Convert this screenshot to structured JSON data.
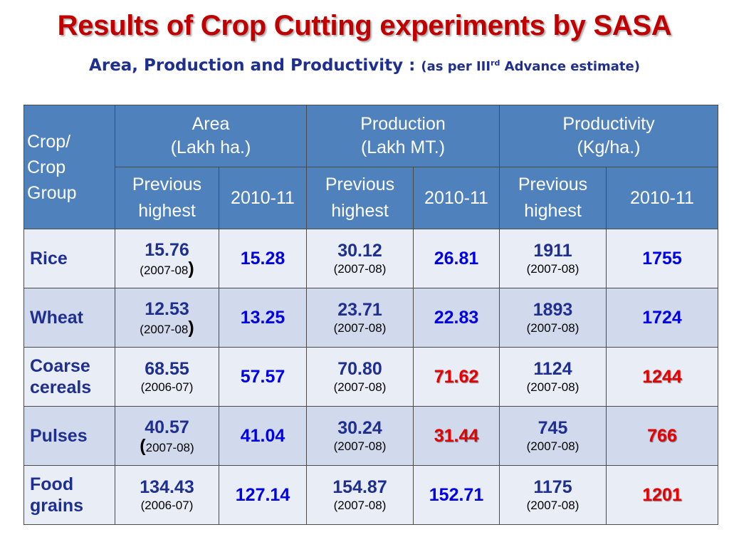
{
  "title": "Results of Crop Cutting experiments by SASA",
  "subtitle": {
    "main": "Area, Production and Productivity :",
    "note_prefix": "(as per III",
    "note_sup": "rd",
    "note_suffix": " Advance estimate)"
  },
  "table": {
    "header": {
      "crop_col": [
        "Crop/",
        "Crop",
        "Group"
      ],
      "groups": [
        {
          "name": "Area",
          "unit": "(Lakh ha.)"
        },
        {
          "name": "Production",
          "unit": "(Lakh MT.)"
        },
        {
          "name": "Productivity",
          "unit": "(Kg/ha.)"
        }
      ],
      "sub": {
        "prev_line1": "Previous",
        "prev_line2": "highest",
        "current": "2010-11"
      }
    },
    "rows": [
      {
        "crop": [
          "Rice"
        ],
        "area": {
          "prev": "15.76",
          "year": "2007-08",
          "year_style": "bigclose",
          "cur": "15.28",
          "cur_red": false
        },
        "production": {
          "prev": "30.12",
          "year": "(2007-08)",
          "cur": "26.81",
          "cur_red": false
        },
        "productivity": {
          "prev": "1911",
          "year": "(2007-08)",
          "cur": "1755",
          "cur_red": false
        }
      },
      {
        "crop": [
          "Wheat"
        ],
        "area": {
          "prev": "12.53",
          "year": "2007-08",
          "year_style": "bigclose",
          "cur": "13.25",
          "cur_red": false
        },
        "production": {
          "prev": "23.71",
          "year": "(2007-08)",
          "cur": "22.83",
          "cur_red": false
        },
        "productivity": {
          "prev": "1893",
          "year": "(2007-08)",
          "cur": "1724",
          "cur_red": false
        }
      },
      {
        "crop": [
          "Coarse",
          "cereals"
        ],
        "area": {
          "prev": "68.55",
          "year": "(2006-07)",
          "year_style": "plain",
          "cur": "57.57",
          "cur_red": false
        },
        "production": {
          "prev": "70.80",
          "year": "(2007-08)",
          "cur": "71.62",
          "cur_red": true
        },
        "productivity": {
          "prev": "1124",
          "year": "(2007-08)",
          "cur": "1244",
          "cur_red": true
        }
      },
      {
        "crop": [
          "Pulses"
        ],
        "area": {
          "prev": "40.57",
          "year": "2007-08)",
          "year_style": "bigopen",
          "cur": "41.04",
          "cur_red": false
        },
        "production": {
          "prev": "30.24",
          "year": "(2007-08)",
          "cur": "31.44",
          "cur_red": true
        },
        "productivity": {
          "prev": "745",
          "year": "(2007-08)",
          "cur": "766",
          "cur_red": true
        }
      },
      {
        "crop": [
          "Food",
          "grains"
        ],
        "area": {
          "prev": "134.43",
          "year": "(2006-07)",
          "year_style": "plain",
          "cur": "127.14",
          "cur_red": false
        },
        "production": {
          "prev": "154.87",
          "year": "(2007-08)",
          "cur": "152.71",
          "cur_red": false
        },
        "productivity": {
          "prev": "1175",
          "year": "(2007-08)",
          "cur": "1201",
          "cur_red": true
        }
      }
    ]
  },
  "colors": {
    "title": "#c00000",
    "subtitle": "#1f2f8f",
    "header_bg": "#4f81bd",
    "row_light": "#e9edf6",
    "row_dark": "#d1d9ec",
    "current_value": "#0000e6",
    "current_value_highlight": "#e60000"
  }
}
